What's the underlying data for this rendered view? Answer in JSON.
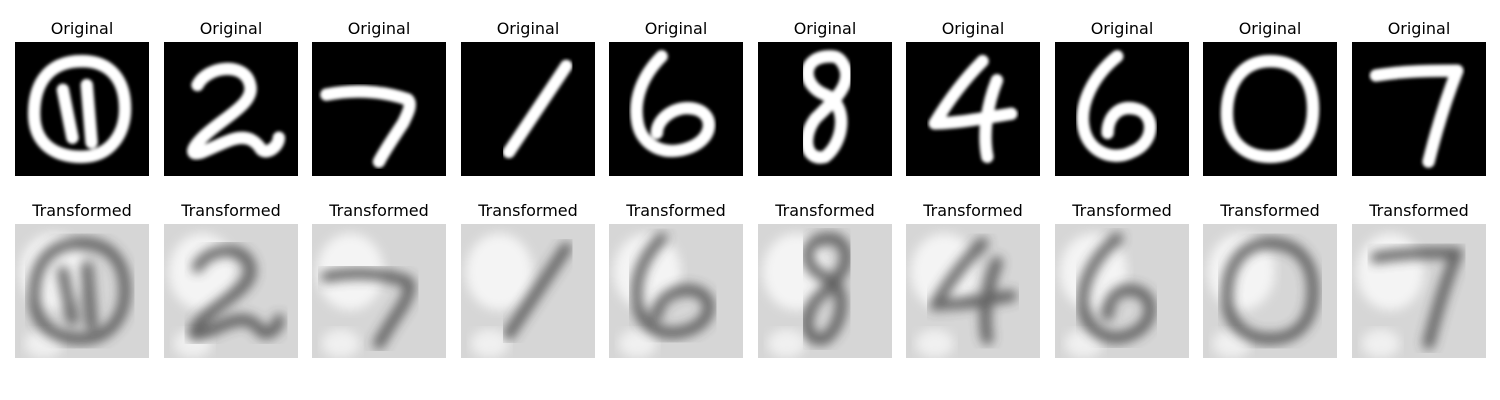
{
  "figure": {
    "row_titles": {
      "original": "Original",
      "transformed": "Transformed"
    },
    "samples": [
      {
        "digit": "0"
      },
      {
        "digit": "2"
      },
      {
        "digit": "7"
      },
      {
        "digit": "1"
      },
      {
        "digit": "6"
      },
      {
        "digit": "8"
      },
      {
        "digit": "4"
      },
      {
        "digit": "6"
      },
      {
        "digit": "0"
      },
      {
        "digit": "7"
      }
    ],
    "colors": {
      "original_background": "#000000",
      "original_stroke": "#ffffff",
      "transformed_background": "#d6d6d6",
      "transformed_stroke": "#3a3a3a"
    }
  }
}
